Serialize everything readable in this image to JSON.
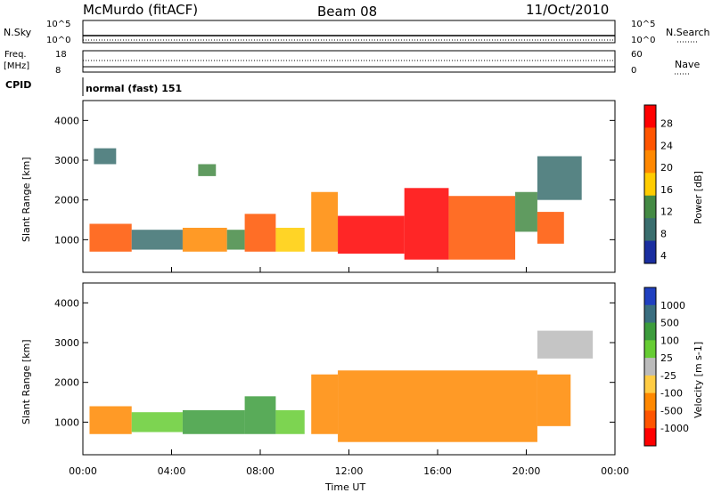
{
  "header": {
    "station": "McMurdo (fitACF)",
    "beam": "Beam 08",
    "date": "11/Oct/2010"
  },
  "top_panel": {
    "nsky_label": "N.Sky",
    "nsearch_label": "N.Search",
    "nsky_ticks": [
      "10^5",
      "10^0"
    ],
    "nsearch_ticks": [
      "10^5",
      "10^0"
    ],
    "freq_label": "Freq.",
    "freq_unit": "[MHz]",
    "freq_ticks": [
      "18",
      "8"
    ],
    "nave_label": "Nave",
    "nave_ticks": [
      "60",
      "0"
    ],
    "cpid_label": "CPID",
    "cpid_value": "normal (fast) 151"
  },
  "chart_data": [
    {
      "type": "heatmap",
      "ylabel": "Slant Range [km]",
      "xlabel": "",
      "xlim": [
        0,
        24
      ],
      "ylim": [
        180,
        4500
      ],
      "y_ticks": [
        "1000",
        "2000",
        "3000",
        "4000"
      ],
      "x_ticks": [
        "00:00",
        "04:00",
        "08:00",
        "12:00",
        "16:00",
        "20:00",
        "00:00"
      ],
      "colorbar": {
        "label": "Power [dB]",
        "ticks": [
          "28",
          "24",
          "20",
          "16",
          "12",
          "8",
          "4"
        ],
        "colors": [
          "#ff0000",
          "#ff5500",
          "#ff8800",
          "#ffcc00",
          "#448a44",
          "#3a6e6e",
          "#1a2ea0"
        ]
      },
      "regions": [
        {
          "x": [
            0.3,
            2.2
          ],
          "y": [
            700,
            1400
          ],
          "value": 24
        },
        {
          "x": [
            2.2,
            4.5
          ],
          "y": [
            750,
            1250
          ],
          "value": 10
        },
        {
          "x": [
            4.5,
            6.5
          ],
          "y": [
            700,
            1300
          ],
          "value": 20
        },
        {
          "x": [
            6.5,
            7.3
          ],
          "y": [
            750,
            1250
          ],
          "value": 14
        },
        {
          "x": [
            7.3,
            8.7
          ],
          "y": [
            700,
            1650
          ],
          "value": 26
        },
        {
          "x": [
            8.7,
            10.0
          ],
          "y": [
            700,
            1300
          ],
          "value": 18
        },
        {
          "x": [
            10.3,
            11.5
          ],
          "y": [
            700,
            2200
          ],
          "value": 22
        },
        {
          "x": [
            11.5,
            14.5
          ],
          "y": [
            650,
            1600
          ],
          "value": 28
        },
        {
          "x": [
            14.5,
            16.5
          ],
          "y": [
            500,
            2300
          ],
          "value": 28
        },
        {
          "x": [
            16.5,
            19.5
          ],
          "y": [
            500,
            2100
          ],
          "value": 26
        },
        {
          "x": [
            19.5,
            20.5
          ],
          "y": [
            1200,
            2200
          ],
          "value": 12
        },
        {
          "x": [
            20.5,
            21.7
          ],
          "y": [
            900,
            1700
          ],
          "value": 24
        },
        {
          "x": [
            0.5,
            1.5
          ],
          "y": [
            2900,
            3300
          ],
          "value": 8
        },
        {
          "x": [
            5.2,
            6.0
          ],
          "y": [
            2600,
            2900
          ],
          "value": 14
        },
        {
          "x": [
            20.5,
            22.5
          ],
          "y": [
            2000,
            3100
          ],
          "value": 10
        }
      ]
    },
    {
      "type": "heatmap",
      "ylabel": "Slant Range [km]",
      "xlabel": "Time UT",
      "xlim": [
        0,
        24
      ],
      "ylim": [
        180,
        4500
      ],
      "y_ticks": [
        "1000",
        "2000",
        "3000",
        "4000"
      ],
      "x_ticks": [
        "00:00",
        "04:00",
        "08:00",
        "12:00",
        "16:00",
        "20:00",
        "00:00"
      ],
      "colorbar": {
        "label": "Velocity [m s-1]",
        "ticks": [
          "1000",
          "500",
          "100",
          "25",
          "-25",
          "-100",
          "-500",
          "-1000"
        ],
        "colors": [
          "#2040c0",
          "#3a6e80",
          "#3c9c3c",
          "#66cc33",
          "#bbbbbb",
          "#ffcc44",
          "#ff8800",
          "#ff5500",
          "#ff0000"
        ]
      },
      "regions": [
        {
          "x": [
            0.3,
            2.2
          ],
          "y": [
            700,
            1400
          ],
          "value": -150
        },
        {
          "x": [
            2.2,
            4.5
          ],
          "y": [
            750,
            1250
          ],
          "value": 60
        },
        {
          "x": [
            4.5,
            7.3
          ],
          "y": [
            700,
            1300
          ],
          "value": 300
        },
        {
          "x": [
            7.3,
            8.7
          ],
          "y": [
            700,
            1650
          ],
          "value": 250
        },
        {
          "x": [
            8.7,
            10.0
          ],
          "y": [
            700,
            1300
          ],
          "value": 80
        },
        {
          "x": [
            10.3,
            11.5
          ],
          "y": [
            700,
            2200
          ],
          "value": -300
        },
        {
          "x": [
            11.5,
            20.5
          ],
          "y": [
            500,
            2300
          ],
          "value": -450
        },
        {
          "x": [
            20.5,
            22.0
          ],
          "y": [
            900,
            2200
          ],
          "value": -200
        },
        {
          "x": [
            20.5,
            23.0
          ],
          "y": [
            2600,
            3300
          ],
          "value": 0
        }
      ]
    }
  ]
}
